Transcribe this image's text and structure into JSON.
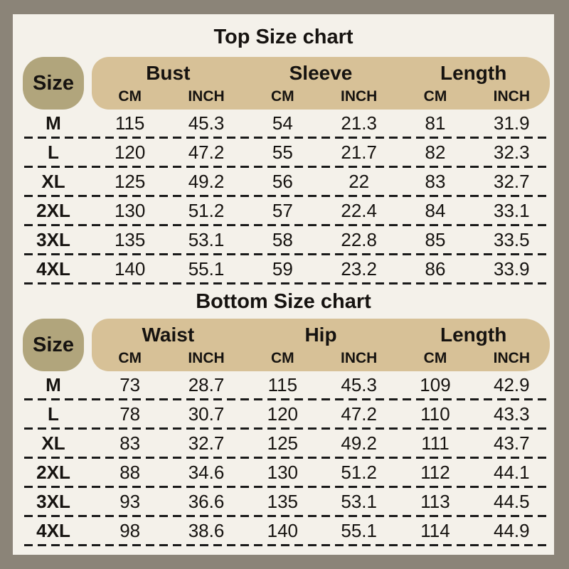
{
  "colors": {
    "frame_bg": "#8b8478",
    "panel_bg": "#f4f1ea",
    "size_pill": "#b1a57c",
    "header_band": "#d7c197",
    "text": "#161310",
    "dash": "#191919"
  },
  "top": {
    "title": "Top Size chart",
    "size_header": "Size",
    "groups": [
      "Bust",
      "Sleeve",
      "Length"
    ],
    "units": [
      "CM",
      "INCH",
      "CM",
      "INCH",
      "CM",
      "INCH"
    ],
    "rows": [
      {
        "size": "M",
        "values": [
          "115",
          "45.3",
          "54",
          "21.3",
          "81",
          "31.9"
        ]
      },
      {
        "size": "L",
        "values": [
          "120",
          "47.2",
          "55",
          "21.7",
          "82",
          "32.3"
        ]
      },
      {
        "size": "XL",
        "values": [
          "125",
          "49.2",
          "56",
          "22",
          "83",
          "32.7"
        ]
      },
      {
        "size": "2XL",
        "values": [
          "130",
          "51.2",
          "57",
          "22.4",
          "84",
          "33.1"
        ]
      },
      {
        "size": "3XL",
        "values": [
          "135",
          "53.1",
          "58",
          "22.8",
          "85",
          "33.5"
        ]
      },
      {
        "size": "4XL",
        "values": [
          "140",
          "55.1",
          "59",
          "23.2",
          "86",
          "33.9"
        ]
      }
    ]
  },
  "bottom": {
    "title": "Bottom Size chart",
    "size_header": "Size",
    "groups": [
      "Waist",
      "Hip",
      "Length"
    ],
    "units": [
      "CM",
      "INCH",
      "CM",
      "INCH",
      "CM",
      "INCH"
    ],
    "rows": [
      {
        "size": "M",
        "values": [
          "73",
          "28.7",
          "115",
          "45.3",
          "109",
          "42.9"
        ]
      },
      {
        "size": "L",
        "values": [
          "78",
          "30.7",
          "120",
          "47.2",
          "110",
          "43.3"
        ]
      },
      {
        "size": "XL",
        "values": [
          "83",
          "32.7",
          "125",
          "49.2",
          "111",
          "43.7"
        ]
      },
      {
        "size": "2XL",
        "values": [
          "88",
          "34.6",
          "130",
          "51.2",
          "112",
          "44.1"
        ]
      },
      {
        "size": "3XL",
        "values": [
          "93",
          "36.6",
          "135",
          "53.1",
          "113",
          "44.5"
        ]
      },
      {
        "size": "4XL",
        "values": [
          "98",
          "38.6",
          "140",
          "55.1",
          "114",
          "44.9"
        ]
      }
    ]
  },
  "chart_data": [
    {
      "type": "table",
      "title": "Top Size chart",
      "columns": [
        "Size",
        "Bust CM",
        "Bust INCH",
        "Sleeve CM",
        "Sleeve INCH",
        "Length CM",
        "Length INCH"
      ],
      "rows": [
        [
          "M",
          115,
          45.3,
          54,
          21.3,
          81,
          31.9
        ],
        [
          "L",
          120,
          47.2,
          55,
          21.7,
          82,
          32.3
        ],
        [
          "XL",
          125,
          49.2,
          56,
          22,
          83,
          32.7
        ],
        [
          "2XL",
          130,
          51.2,
          57,
          22.4,
          84,
          33.1
        ],
        [
          "3XL",
          135,
          53.1,
          58,
          22.8,
          85,
          33.5
        ],
        [
          "4XL",
          140,
          55.1,
          59,
          23.2,
          86,
          33.9
        ]
      ]
    },
    {
      "type": "table",
      "title": "Bottom Size chart",
      "columns": [
        "Size",
        "Waist CM",
        "Waist INCH",
        "Hip CM",
        "Hip INCH",
        "Length CM",
        "Length INCH"
      ],
      "rows": [
        [
          "M",
          73,
          28.7,
          115,
          45.3,
          109,
          42.9
        ],
        [
          "L",
          78,
          30.7,
          120,
          47.2,
          110,
          43.3
        ],
        [
          "XL",
          83,
          32.7,
          125,
          49.2,
          111,
          43.7
        ],
        [
          "2XL",
          88,
          34.6,
          130,
          51.2,
          112,
          44.1
        ],
        [
          "3XL",
          93,
          36.6,
          135,
          53.1,
          113,
          44.5
        ],
        [
          "4XL",
          98,
          38.6,
          140,
          55.1,
          114,
          44.9
        ]
      ]
    }
  ]
}
